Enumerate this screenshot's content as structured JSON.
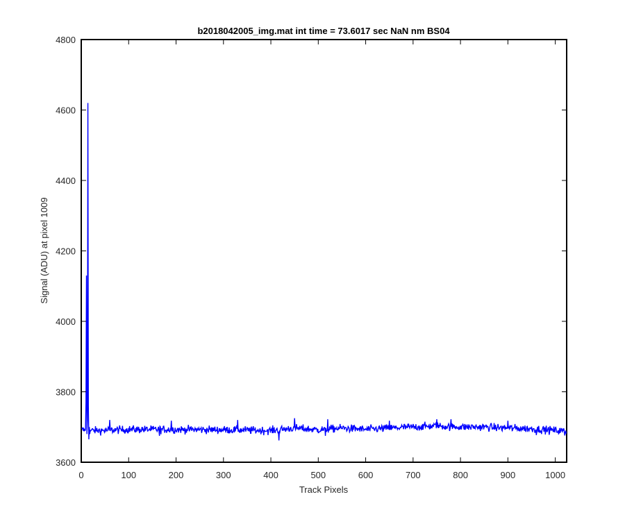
{
  "chart_data": {
    "type": "line",
    "title": "b2018042005_img.mat int time = 73.6017 sec  NaN nm BS04",
    "xlabel": "Track Pixels",
    "ylabel": "Signal (ADU) at pixel 1009",
    "xlim": [
      0,
      1024
    ],
    "ylim": [
      3600,
      4800
    ],
    "xticks": [
      0,
      100,
      200,
      300,
      400,
      500,
      600,
      700,
      800,
      900,
      1000
    ],
    "yticks": [
      3600,
      3800,
      4000,
      4200,
      4400,
      4600,
      4800
    ],
    "grid": false,
    "legend": "none",
    "series_color": "#0000ff",
    "baseline_profile": {
      "x": [
        0,
        10,
        40,
        100,
        200,
        300,
        400,
        450,
        500,
        550,
        600,
        650,
        700,
        750,
        800,
        850,
        900,
        950,
        1024
      ],
      "y": [
        3692,
        3690,
        3690,
        3693,
        3693,
        3692,
        3690,
        3697,
        3692,
        3697,
        3693,
        3697,
        3700,
        3703,
        3700,
        3700,
        3697,
        3695,
        3688
      ],
      "noise": 10
    },
    "spike": {
      "x": [
        9,
        10,
        11,
        12,
        13,
        14,
        15,
        16,
        17,
        18,
        19
      ],
      "y": [
        3695,
        3770,
        4130,
        3680,
        3720,
        4620,
        3760,
        3665,
        3700,
        3680,
        3690
      ]
    },
    "dips": {
      "x": [
        17,
        165,
        417,
        515,
        960,
        1020
      ],
      "y": [
        3663,
        3675,
        3662,
        3675,
        3677,
        3676
      ]
    },
    "peaks": {
      "x": [
        60,
        190,
        330,
        450,
        520,
        650,
        750,
        780,
        900
      ],
      "y": [
        3720,
        3718,
        3720,
        3725,
        3722,
        3718,
        3722,
        3722,
        3718
      ]
    }
  }
}
